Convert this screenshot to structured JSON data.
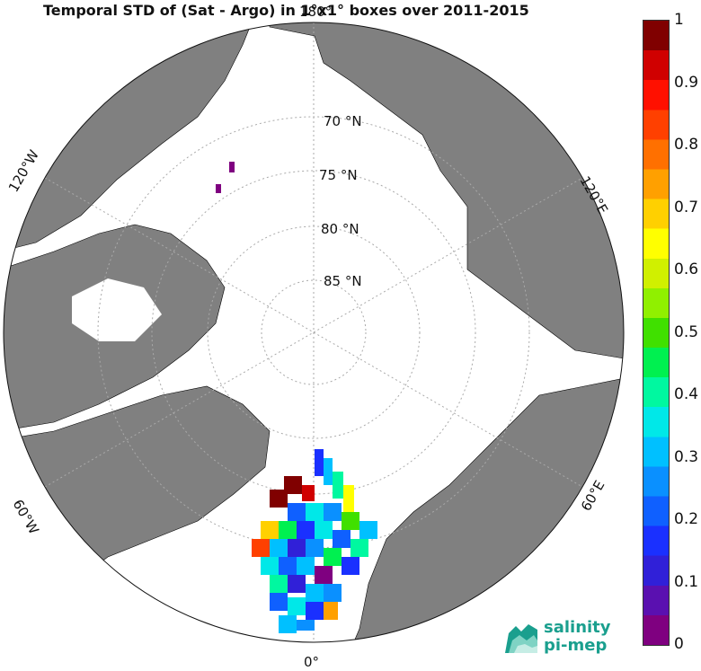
{
  "title": "Temporal STD of (Sat - Argo) in 1°x1° boxes over 2011-2015",
  "map": {
    "projection": "north polar stereographic",
    "center": "North Pole",
    "ocean_color": "#ffffff",
    "land_color": "#808080",
    "grid_style": "dotted"
  },
  "latitude_labels": [
    "70 °N",
    "75 °N",
    "80 °N",
    "85 °N"
  ],
  "longitude_labels": {
    "top": "180°",
    "bottom": "0°",
    "left_upper": "120°W",
    "left_lower": "60°W",
    "right_upper": "120°E",
    "right_lower": "60°E"
  },
  "colorbar": {
    "min": 0,
    "max": 1,
    "steps": 20,
    "ticks": [
      "0",
      "0.1",
      "0.2",
      "0.3",
      "0.4",
      "0.5",
      "0.6",
      "0.7",
      "0.8",
      "0.9",
      "1"
    ],
    "colors": [
      "#7f0080",
      "#5a10b0",
      "#3020d8",
      "#1a30ff",
      "#0f60ff",
      "#0a90ff",
      "#00c0ff",
      "#00e8e8",
      "#00f8a0",
      "#00f050",
      "#40e000",
      "#90f000",
      "#d0f000",
      "#ffff00",
      "#ffd000",
      "#ffa000",
      "#ff7000",
      "#ff4000",
      "#ff1000",
      "#d00000",
      "#800000"
    ]
  },
  "logo": {
    "line1": "salinity",
    "line2": "pi-mep"
  }
}
